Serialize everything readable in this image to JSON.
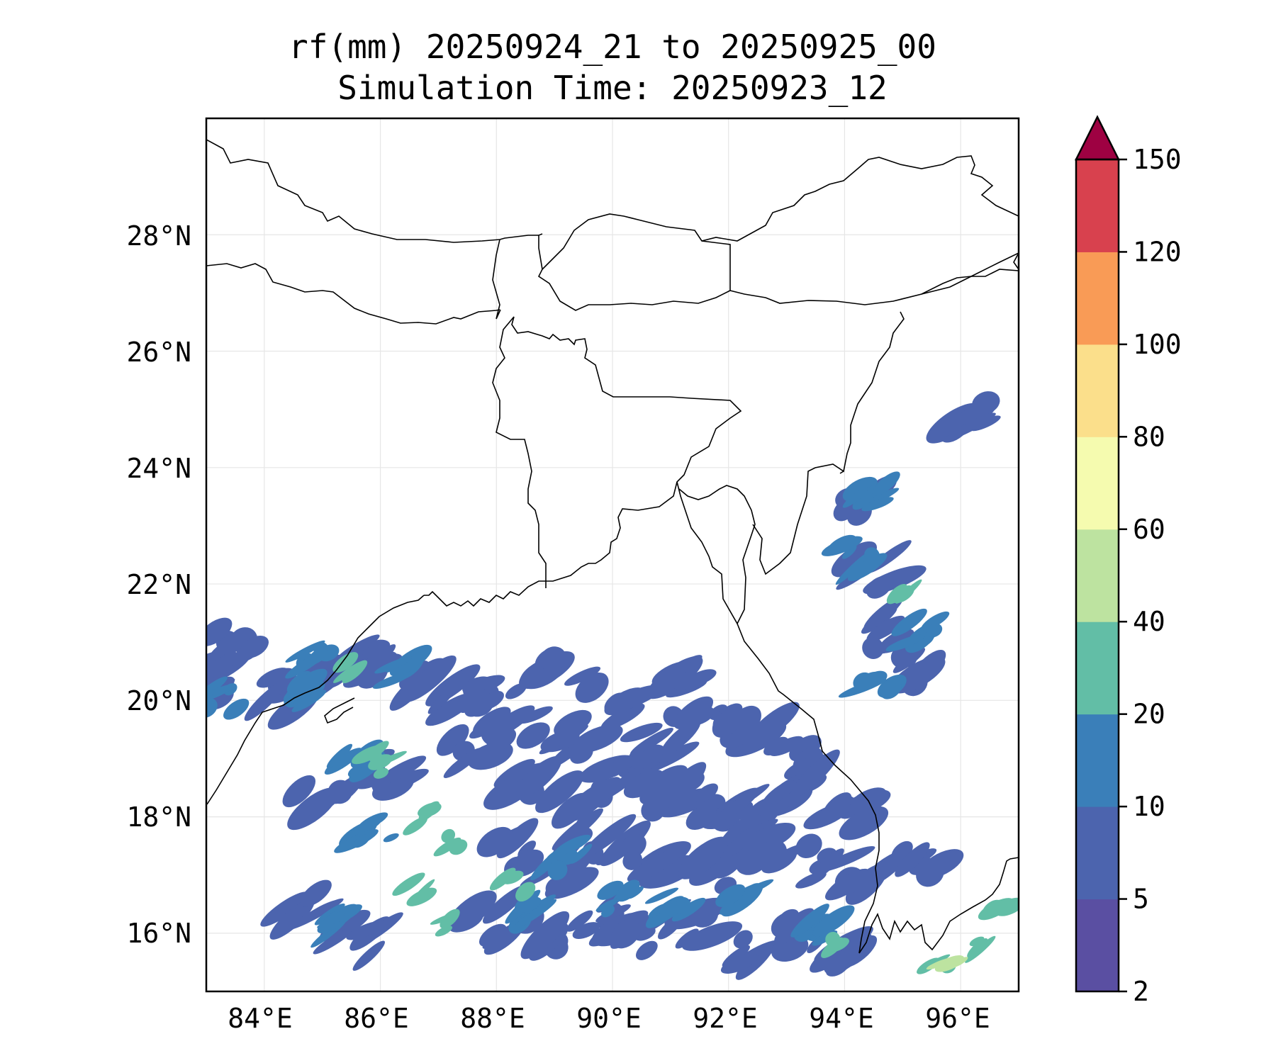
{
  "title": {
    "line1": "rf(mm) 20250924_21 to 20250925_00",
    "line2": "Simulation Time: 20250923_12"
  },
  "map": {
    "lon_range": [
      83,
      97
    ],
    "lat_range": [
      15,
      30
    ],
    "x_ticks": [
      {
        "value": 84,
        "label": "84°E"
      },
      {
        "value": 86,
        "label": "86°E"
      },
      {
        "value": 88,
        "label": "88°E"
      },
      {
        "value": 90,
        "label": "90°E"
      },
      {
        "value": 92,
        "label": "92°E"
      },
      {
        "value": 94,
        "label": "94°E"
      },
      {
        "value": 96,
        "label": "96°E"
      }
    ],
    "y_ticks": [
      {
        "value": 16,
        "label": "16°N"
      },
      {
        "value": 18,
        "label": "18°N"
      },
      {
        "value": 20,
        "label": "20°N"
      },
      {
        "value": 22,
        "label": "22°N"
      },
      {
        "value": 24,
        "label": "24°N"
      },
      {
        "value": 26,
        "label": "26°N"
      },
      {
        "value": 28,
        "label": "28°N"
      }
    ],
    "grid": true
  },
  "colorbar": {
    "levels": [
      "2",
      "5",
      "10",
      "20",
      "40",
      "60",
      "80",
      "100",
      "120",
      "150"
    ],
    "colors": [
      "#5a4fa2",
      "#4c64ae",
      "#3a7fb9",
      "#62bea6",
      "#bde3a0",
      "#f5fbaf",
      "#fbdf8b",
      "#f99b56",
      "#d8414e"
    ],
    "extend_color": "#9e0142"
  },
  "chart_data": {
    "type": "heatmap",
    "title": "rf(mm) 20250924_21 to 20250925_00 Simulation Time: 20250923_12",
    "x_range": [
      83,
      97
    ],
    "y_range": [
      15,
      30
    ],
    "regions": [
      {
        "name": "",
        "level": 5,
        "cells": [
          [
            83.3,
            20.3
          ],
          [
            83.5,
            20.9
          ],
          [
            84.1,
            20.1
          ],
          [
            85.4,
            20.5
          ],
          [
            85.9,
            20.6
          ],
          [
            86.5,
            20.4
          ],
          [
            87.3,
            20.0
          ],
          [
            88.0,
            20.2
          ],
          [
            89.1,
            20.6
          ],
          [
            90.0,
            20.0
          ],
          [
            91.2,
            20.3
          ],
          [
            87.6,
            19.2
          ],
          [
            88.3,
            19.5
          ],
          [
            89.5,
            19.3
          ],
          [
            90.6,
            19.2
          ],
          [
            91.4,
            19.5
          ],
          [
            92.4,
            19.5
          ],
          [
            93.1,
            19.0
          ],
          [
            88.6,
            18.5
          ],
          [
            89.4,
            18.2
          ],
          [
            90.2,
            18.6
          ],
          [
            91.0,
            18.4
          ],
          [
            91.8,
            18.2
          ],
          [
            92.6,
            18.0
          ],
          [
            93.3,
            18.6
          ],
          [
            94.0,
            18.0
          ],
          [
            88.2,
            17.4
          ],
          [
            89.0,
            17.1
          ],
          [
            89.8,
            17.5
          ],
          [
            90.7,
            17.2
          ],
          [
            91.6,
            17.0
          ],
          [
            92.5,
            17.4
          ],
          [
            93.4,
            17.2
          ],
          [
            94.3,
            17.0
          ],
          [
            87.9,
            16.2
          ],
          [
            88.8,
            16.0
          ],
          [
            89.7,
            16.3
          ],
          [
            90.5,
            15.8
          ],
          [
            91.3,
            16.1
          ],
          [
            92.3,
            15.6
          ],
          [
            93.2,
            16.0
          ],
          [
            94.1,
            15.6
          ],
          [
            95.3,
            17.2
          ],
          [
            94.3,
            23.5
          ],
          [
            94.5,
            22.2
          ],
          [
            94.9,
            21.2
          ],
          [
            95.2,
            20.5
          ],
          [
            96.2,
            24.9
          ],
          [
            85.6,
            15.9
          ],
          [
            84.6,
            16.4
          ],
          [
            85.0,
            18.3
          ],
          [
            86.0,
            18.8
          ]
        ]
      },
      {
        "name": "",
        "level": 10,
        "cells": [
          [
            83.2,
            20.0
          ],
          [
            84.5,
            20.2
          ],
          [
            85.0,
            20.7
          ],
          [
            86.4,
            20.5
          ],
          [
            85.6,
            19.0
          ],
          [
            85.9,
            17.7
          ],
          [
            89.2,
            17.3
          ],
          [
            90.2,
            16.6
          ],
          [
            91.0,
            16.5
          ],
          [
            92.2,
            16.7
          ],
          [
            93.5,
            16.0
          ],
          [
            94.6,
            20.4
          ],
          [
            94.2,
            22.5
          ],
          [
            94.5,
            23.6
          ],
          [
            95.3,
            21.2
          ],
          [
            88.4,
            16.4
          ],
          [
            85.2,
            16.2
          ]
        ]
      },
      {
        "name": "",
        "level": 20,
        "cells": [
          [
            85.9,
            19.2
          ],
          [
            86.1,
            18.9
          ],
          [
            86.6,
            18.0
          ],
          [
            87.1,
            17.5
          ],
          [
            86.6,
            16.7
          ],
          [
            87.3,
            16.2
          ],
          [
            88.3,
            16.8
          ],
          [
            93.9,
            15.9
          ],
          [
            95.6,
            15.6
          ],
          [
            96.4,
            15.8
          ],
          [
            96.8,
            16.3
          ],
          [
            94.9,
            21.8
          ],
          [
            85.5,
            20.5
          ]
        ]
      },
      {
        "name": "",
        "level": 40,
        "cells": [
          [
            95.8,
            15.5
          ]
        ]
      }
    ]
  }
}
